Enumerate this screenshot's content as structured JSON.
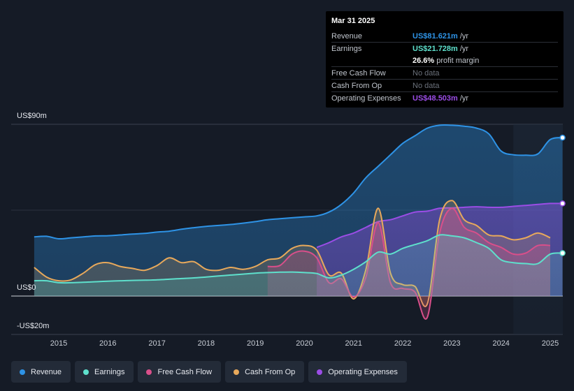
{
  "tooltip": {
    "date": "Mar 31 2025",
    "revenue": {
      "label": "Revenue",
      "value": "US$81.621m",
      "unit": "/yr"
    },
    "earnings": {
      "label": "Earnings",
      "value": "US$21.728m",
      "unit": "/yr"
    },
    "margin": {
      "value": "26.6%",
      "text": "profit margin"
    },
    "fcf": {
      "label": "Free Cash Flow",
      "value": "No data"
    },
    "cfo": {
      "label": "Cash From Op",
      "value": "No data"
    },
    "opex": {
      "label": "Operating Expenses",
      "value": "US$48.503m",
      "unit": "/yr"
    }
  },
  "colors": {
    "revenue": "#2e93e6",
    "earnings": "#5ee0cc",
    "fcf": "#d94f8a",
    "cfo": "#e8a95b",
    "opex": "#9b4de6"
  },
  "legend": [
    {
      "key": "revenue",
      "label": "Revenue"
    },
    {
      "key": "earnings",
      "label": "Earnings"
    },
    {
      "key": "fcf",
      "label": "Free Cash Flow"
    },
    {
      "key": "cfo",
      "label": "Cash From Op"
    },
    {
      "key": "opex",
      "label": "Operating Expenses"
    }
  ],
  "chart_data": {
    "type": "area",
    "title": "",
    "xlabel": "",
    "ylabel": "",
    "y_unit": "US$m",
    "ylim": [
      -20,
      90
    ],
    "y_tick_labels": [
      {
        "value": 90,
        "label": "US$90m"
      },
      {
        "value": 0,
        "label": "US$0"
      },
      {
        "value": -20,
        "label": "-US$20m"
      }
    ],
    "x_ticks": [
      2015,
      2016,
      2017,
      2018,
      2019,
      2020,
      2021,
      2022,
      2023,
      2024,
      2025
    ],
    "xlim": [
      2014.5,
      2025.25
    ],
    "highlight_from": 2024.25,
    "series": [
      {
        "key": "revenue",
        "name": "Revenue",
        "points": [
          [
            2014.5,
            31
          ],
          [
            2014.75,
            31.3
          ],
          [
            2015,
            30
          ],
          [
            2015.25,
            30.5
          ],
          [
            2015.5,
            31
          ],
          [
            2015.75,
            31.5
          ],
          [
            2016,
            31.6
          ],
          [
            2016.25,
            32
          ],
          [
            2016.5,
            32.5
          ],
          [
            2016.75,
            32.8
          ],
          [
            2017,
            33.5
          ],
          [
            2017.25,
            34
          ],
          [
            2017.5,
            35
          ],
          [
            2017.75,
            35.8
          ],
          [
            2018,
            36.5
          ],
          [
            2018.25,
            37
          ],
          [
            2018.5,
            37.5
          ],
          [
            2018.75,
            38.2
          ],
          [
            2019,
            39
          ],
          [
            2019.25,
            40
          ],
          [
            2019.5,
            40.5
          ],
          [
            2019.75,
            41
          ],
          [
            2020,
            41.5
          ],
          [
            2020.25,
            42
          ],
          [
            2020.5,
            44
          ],
          [
            2020.75,
            48
          ],
          [
            2021,
            54
          ],
          [
            2021.25,
            62
          ],
          [
            2021.5,
            68
          ],
          [
            2021.75,
            74
          ],
          [
            2022,
            80
          ],
          [
            2022.25,
            84
          ],
          [
            2022.5,
            88
          ],
          [
            2022.75,
            89.5
          ],
          [
            2023,
            89.5
          ],
          [
            2023.25,
            89
          ],
          [
            2023.5,
            88
          ],
          [
            2023.75,
            85
          ],
          [
            2024,
            76
          ],
          [
            2024.25,
            74
          ],
          [
            2024.5,
            73.8
          ],
          [
            2024.75,
            74.5
          ],
          [
            2025,
            82
          ],
          [
            2025.25,
            83
          ]
        ]
      },
      {
        "key": "opex",
        "name": "Operating Expenses",
        "points": [
          [
            2020.25,
            25.5
          ],
          [
            2020.5,
            28
          ],
          [
            2020.75,
            31
          ],
          [
            2021,
            33
          ],
          [
            2021.25,
            36
          ],
          [
            2021.5,
            39
          ],
          [
            2021.75,
            40
          ],
          [
            2022,
            42
          ],
          [
            2022.25,
            44
          ],
          [
            2022.5,
            44.5
          ],
          [
            2022.75,
            46
          ],
          [
            2023,
            46.2
          ],
          [
            2023.25,
            46.5
          ],
          [
            2023.5,
            46.8
          ],
          [
            2023.75,
            46.5
          ],
          [
            2024,
            46.5
          ],
          [
            2024.25,
            47
          ],
          [
            2024.5,
            47.5
          ],
          [
            2024.75,
            48
          ],
          [
            2025,
            48.5
          ],
          [
            2025.25,
            48.5
          ]
        ]
      },
      {
        "key": "cfo",
        "name": "Cash From Op",
        "points": [
          [
            2014.5,
            15
          ],
          [
            2014.75,
            10
          ],
          [
            2015,
            8
          ],
          [
            2015.25,
            8.5
          ],
          [
            2015.5,
            12
          ],
          [
            2015.75,
            16.5
          ],
          [
            2016,
            17.5
          ],
          [
            2016.25,
            15.5
          ],
          [
            2016.5,
            14.5
          ],
          [
            2016.75,
            13.5
          ],
          [
            2017,
            16
          ],
          [
            2017.25,
            20
          ],
          [
            2017.5,
            17.5
          ],
          [
            2017.75,
            18
          ],
          [
            2018,
            14
          ],
          [
            2018.25,
            13.5
          ],
          [
            2018.5,
            15
          ],
          [
            2018.75,
            14
          ],
          [
            2019,
            15.5
          ],
          [
            2019.25,
            19
          ],
          [
            2019.5,
            20
          ],
          [
            2019.75,
            25
          ],
          [
            2020,
            26.5
          ],
          [
            2020.25,
            24
          ],
          [
            2020.5,
            11
          ],
          [
            2020.75,
            12
          ],
          [
            2021,
            -1.5
          ],
          [
            2021.25,
            14
          ],
          [
            2021.5,
            46
          ],
          [
            2021.75,
            12
          ],
          [
            2022,
            6
          ],
          [
            2022.25,
            5
          ],
          [
            2022.5,
            -4
          ],
          [
            2022.75,
            40
          ],
          [
            2023,
            50
          ],
          [
            2023.25,
            40
          ],
          [
            2023.5,
            37
          ],
          [
            2023.75,
            32
          ],
          [
            2024,
            31.5
          ],
          [
            2024.25,
            29.5
          ],
          [
            2024.5,
            30.5
          ],
          [
            2024.75,
            33
          ],
          [
            2025,
            30.5
          ]
        ]
      },
      {
        "key": "fcf",
        "name": "Free Cash Flow",
        "points": [
          [
            2019.25,
            15.5
          ],
          [
            2019.5,
            16
          ],
          [
            2019.75,
            22
          ],
          [
            2020,
            23.5
          ],
          [
            2020.25,
            20
          ],
          [
            2020.5,
            7
          ],
          [
            2020.75,
            9
          ],
          [
            2021,
            -0.5
          ],
          [
            2021.25,
            10
          ],
          [
            2021.5,
            38.5
          ],
          [
            2021.75,
            7
          ],
          [
            2022,
            4
          ],
          [
            2022.25,
            2
          ],
          [
            2022.5,
            -11
          ],
          [
            2022.75,
            33
          ],
          [
            2023,
            46
          ],
          [
            2023.25,
            36
          ],
          [
            2023.5,
            33
          ],
          [
            2023.75,
            28
          ],
          [
            2024,
            25.5
          ],
          [
            2024.25,
            22
          ],
          [
            2024.5,
            22.5
          ],
          [
            2024.75,
            26.5
          ],
          [
            2025,
            26.5
          ]
        ]
      },
      {
        "key": "earnings",
        "name": "Earnings",
        "points": [
          [
            2014.5,
            8
          ],
          [
            2014.75,
            8
          ],
          [
            2015,
            7
          ],
          [
            2015.25,
            7
          ],
          [
            2015.5,
            7.2
          ],
          [
            2015.75,
            7.5
          ],
          [
            2016,
            7.8
          ],
          [
            2016.25,
            8
          ],
          [
            2016.5,
            8.2
          ],
          [
            2016.75,
            8.3
          ],
          [
            2017,
            8.5
          ],
          [
            2017.25,
            8.8
          ],
          [
            2017.5,
            9.2
          ],
          [
            2017.75,
            9.5
          ],
          [
            2018,
            10
          ],
          [
            2018.25,
            10.5
          ],
          [
            2018.5,
            11
          ],
          [
            2018.75,
            11.5
          ],
          [
            2019,
            12
          ],
          [
            2019.25,
            12.3
          ],
          [
            2019.5,
            12.5
          ],
          [
            2019.75,
            12.6
          ],
          [
            2020,
            12.3
          ],
          [
            2020.25,
            11.8
          ],
          [
            2020.5,
            9.5
          ],
          [
            2020.75,
            11
          ],
          [
            2021,
            14
          ],
          [
            2021.25,
            18
          ],
          [
            2021.5,
            23
          ],
          [
            2021.75,
            22
          ],
          [
            2022,
            25
          ],
          [
            2022.25,
            27
          ],
          [
            2022.5,
            29
          ],
          [
            2022.75,
            32
          ],
          [
            2023,
            31.5
          ],
          [
            2023.25,
            30.5
          ],
          [
            2023.5,
            28
          ],
          [
            2023.75,
            25
          ],
          [
            2024,
            19
          ],
          [
            2024.25,
            17.5
          ],
          [
            2024.5,
            17
          ],
          [
            2024.75,
            17
          ],
          [
            2025,
            22
          ],
          [
            2025.25,
            22.5
          ]
        ]
      }
    ],
    "end_markers": [
      "revenue",
      "opex",
      "earnings"
    ]
  }
}
